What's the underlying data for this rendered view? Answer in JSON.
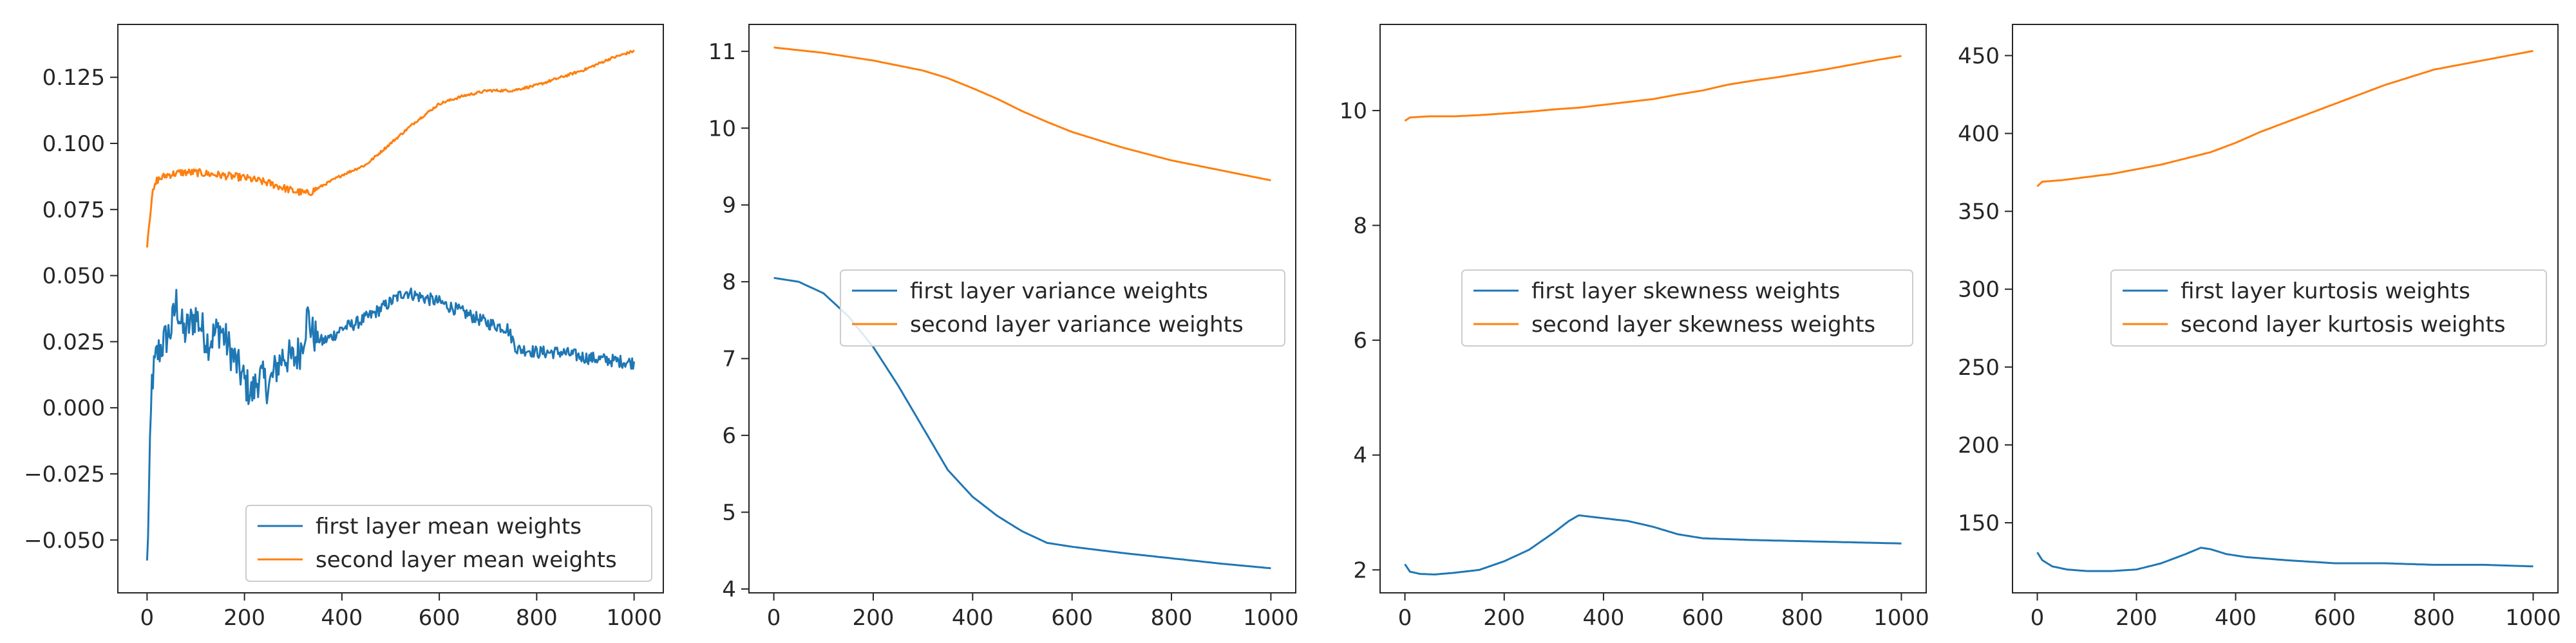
{
  "colors": {
    "series1": "#1f77b4",
    "series2": "#ff7f0e",
    "axis": "#262626",
    "legend_border": "#cccccc"
  },
  "chart_data": [
    {
      "type": "line",
      "title": "",
      "xlabel": "",
      "ylabel": "",
      "xlim": [
        -60,
        1060
      ],
      "ylim": [
        -0.07,
        0.145
      ],
      "xticks": [
        0,
        200,
        400,
        600,
        800,
        1000
      ],
      "xtick_labels": [
        "0",
        "200",
        "400",
        "600",
        "800",
        "1000"
      ],
      "yticks": [
        -0.05,
        -0.025,
        0.0,
        0.025,
        0.05,
        0.075,
        0.1,
        0.125
      ],
      "ytick_labels": [
        "−0.050",
        "−0.025",
        "0.000",
        "0.025",
        "0.050",
        "0.075",
        "0.100",
        "0.125"
      ],
      "legend_position": "lower-right",
      "series": [
        {
          "name": "first layer mean weights",
          "noise": 0.004,
          "x": [
            0,
            5,
            10,
            20,
            35,
            50,
            60,
            75,
            100,
            125,
            150,
            175,
            200,
            215,
            230,
            250,
            265,
            280,
            300,
            315,
            330,
            340,
            360,
            380,
            400,
            430,
            460,
            500,
            530,
            560,
            600,
            650,
            700,
            740,
            760,
            780,
            800,
            850,
            900,
            950,
            1000
          ],
          "y": [
            -0.06,
            -0.025,
            0.01,
            0.02,
            0.025,
            0.03,
            0.04,
            0.028,
            0.035,
            0.025,
            0.03,
            0.02,
            0.01,
            0.005,
            0.012,
            0.008,
            0.015,
            0.02,
            0.018,
            0.022,
            0.035,
            0.028,
            0.025,
            0.027,
            0.03,
            0.032,
            0.035,
            0.04,
            0.044,
            0.042,
            0.04,
            0.036,
            0.032,
            0.03,
            0.022,
            0.022,
            0.021,
            0.021,
            0.019,
            0.018,
            0.017
          ]
        },
        {
          "name": "second layer mean weights",
          "noise": 0.0008,
          "x": [
            0,
            10,
            20,
            40,
            70,
            100,
            150,
            200,
            250,
            300,
            330,
            360,
            400,
            450,
            500,
            550,
            600,
            650,
            700,
            750,
            800,
            850,
            900,
            950,
            1000
          ],
          "y": [
            0.062,
            0.08,
            0.086,
            0.088,
            0.089,
            0.089,
            0.088,
            0.087,
            0.085,
            0.082,
            0.081,
            0.084,
            0.088,
            0.092,
            0.1,
            0.108,
            0.115,
            0.118,
            0.12,
            0.12,
            0.122,
            0.125,
            0.128,
            0.132,
            0.135
          ]
        }
      ]
    },
    {
      "type": "line",
      "title": "",
      "xlabel": "",
      "ylabel": "",
      "xlim": [
        -50,
        1050
      ],
      "ylim": [
        3.95,
        11.35
      ],
      "xticks": [
        0,
        200,
        400,
        600,
        800,
        1000
      ],
      "xtick_labels": [
        "0",
        "200",
        "400",
        "600",
        "800",
        "1000"
      ],
      "yticks": [
        4,
        5,
        6,
        7,
        8,
        9,
        10,
        11
      ],
      "ytick_labels": [
        "4",
        "5",
        "6",
        "7",
        "8",
        "9",
        "10",
        "11"
      ],
      "legend_position": "center-right",
      "series": [
        {
          "name": "first layer variance weights",
          "noise": 0,
          "x": [
            0,
            50,
            100,
            150,
            200,
            250,
            300,
            350,
            400,
            450,
            500,
            550,
            600,
            700,
            800,
            900,
            1000
          ],
          "y": [
            8.05,
            8.0,
            7.85,
            7.55,
            7.15,
            6.65,
            6.1,
            5.55,
            5.2,
            4.95,
            4.75,
            4.6,
            4.55,
            4.47,
            4.4,
            4.33,
            4.27
          ]
        },
        {
          "name": "second layer variance weights",
          "noise": 0,
          "x": [
            0,
            100,
            200,
            300,
            350,
            400,
            450,
            500,
            550,
            600,
            700,
            800,
            900,
            1000
          ],
          "y": [
            11.05,
            10.98,
            10.88,
            10.75,
            10.65,
            10.52,
            10.38,
            10.22,
            10.08,
            9.95,
            9.75,
            9.58,
            9.45,
            9.32
          ]
        }
      ]
    },
    {
      "type": "line",
      "title": "",
      "xlabel": "",
      "ylabel": "",
      "xlim": [
        -50,
        1050
      ],
      "ylim": [
        1.6,
        11.5
      ],
      "xticks": [
        0,
        200,
        400,
        600,
        800,
        1000
      ],
      "xtick_labels": [
        "0",
        "200",
        "400",
        "600",
        "800",
        "1000"
      ],
      "yticks": [
        2,
        4,
        6,
        8,
        10
      ],
      "ytick_labels": [
        "2",
        "4",
        "6",
        "8",
        "10"
      ],
      "legend_position": "center-right",
      "series": [
        {
          "name": "first layer skewness weights",
          "noise": 0,
          "x": [
            0,
            10,
            30,
            60,
            100,
            150,
            200,
            250,
            300,
            330,
            350,
            380,
            420,
            450,
            500,
            550,
            600,
            700,
            800,
            900,
            1000
          ],
          "y": [
            2.1,
            1.97,
            1.93,
            1.92,
            1.95,
            2.0,
            2.15,
            2.35,
            2.65,
            2.85,
            2.95,
            2.92,
            2.88,
            2.85,
            2.75,
            2.62,
            2.55,
            2.52,
            2.5,
            2.48,
            2.46
          ]
        },
        {
          "name": "second layer skewness weights",
          "noise": 0,
          "x": [
            0,
            10,
            50,
            100,
            150,
            200,
            250,
            300,
            350,
            400,
            450,
            500,
            550,
            600,
            650,
            700,
            750,
            800,
            850,
            900,
            950,
            1000
          ],
          "y": [
            9.82,
            9.88,
            9.9,
            9.9,
            9.92,
            9.95,
            9.98,
            10.02,
            10.05,
            10.1,
            10.15,
            10.2,
            10.28,
            10.35,
            10.45,
            10.52,
            10.58,
            10.65,
            10.72,
            10.8,
            10.88,
            10.95
          ]
        }
      ]
    },
    {
      "type": "line",
      "title": "",
      "xlabel": "",
      "ylabel": "",
      "xlim": [
        -50,
        1050
      ],
      "ylim": [
        105,
        470
      ],
      "xticks": [
        0,
        200,
        400,
        600,
        800,
        1000
      ],
      "xtick_labels": [
        "0",
        "200",
        "400",
        "600",
        "800",
        "1000"
      ],
      "yticks": [
        150,
        200,
        250,
        300,
        350,
        400,
        450
      ],
      "ytick_labels": [
        "150",
        "200",
        "250",
        "300",
        "350",
        "400",
        "450"
      ],
      "legend_position": "center-right",
      "series": [
        {
          "name": "first layer kurtosis weights",
          "noise": 0,
          "x": [
            0,
            10,
            30,
            60,
            100,
            150,
            200,
            250,
            300,
            330,
            350,
            380,
            420,
            500,
            600,
            700,
            800,
            900,
            1000
          ],
          "y": [
            131,
            126,
            122,
            120,
            119,
            119,
            120,
            124,
            130,
            134,
            133,
            130,
            128,
            126,
            124,
            124,
            123,
            123,
            122
          ]
        },
        {
          "name": "second layer kurtosis weights",
          "noise": 0,
          "x": [
            0,
            10,
            50,
            100,
            150,
            200,
            250,
            300,
            350,
            400,
            450,
            500,
            550,
            600,
            650,
            700,
            750,
            800,
            850,
            900,
            950,
            1000
          ],
          "y": [
            366,
            369,
            370,
            372,
            374,
            377,
            380,
            384,
            388,
            394,
            401,
            407,
            413,
            419,
            425,
            431,
            436,
            441,
            444,
            447,
            450,
            453
          ]
        }
      ]
    }
  ]
}
